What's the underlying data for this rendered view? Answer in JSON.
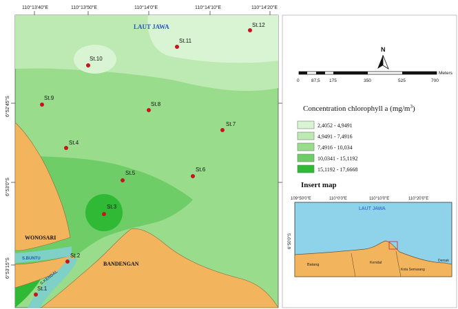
{
  "main_map": {
    "top_coords": [
      "110°13'40\"E",
      "110°13'50\"E",
      "110°14'0\"E",
      "110°14'10\"E",
      "110°14'20\"E"
    ],
    "left_coords": [
      "6°52'45\"S",
      "6°53'0\"S",
      "6°53'15\"S"
    ],
    "sea_label": "LAUT JAWA",
    "places": {
      "wonosari": "WONOSARI",
      "bandengan": "BANDENGAN",
      "river_buntu": "S.BUNTU",
      "river_kendal": "S.KENDAL"
    },
    "stations": [
      {
        "id": "st1",
        "label": "St.1"
      },
      {
        "id": "st2",
        "label": "St.2"
      },
      {
        "id": "st3",
        "label": "St.3"
      },
      {
        "id": "st4",
        "label": "St.4"
      },
      {
        "id": "st5",
        "label": "St.5"
      },
      {
        "id": "st6",
        "label": "St.6"
      },
      {
        "id": "st7",
        "label": "St.7"
      },
      {
        "id": "st8",
        "label": "St.8"
      },
      {
        "id": "st9",
        "label": "St.9"
      },
      {
        "id": "st10",
        "label": "St.10"
      },
      {
        "id": "st11",
        "label": "St.11"
      },
      {
        "id": "st12",
        "label": "St.12"
      }
    ]
  },
  "north_arrow": "N",
  "scale_bar": {
    "ticks": [
      "0",
      "87,5",
      "175",
      "350",
      "525",
      "700"
    ],
    "unit": "Meters"
  },
  "legend": {
    "title": "Concentration chlorophyll a (mg/m",
    "title_sup": "3",
    "title_end": ")",
    "classes": [
      {
        "label": "2,4052 - 4,9491",
        "color": "#d9f4d2"
      },
      {
        "label": "4,9491 - 7,4916",
        "color": "#bde9b3"
      },
      {
        "label": "7,4916 - 10,034",
        "color": "#98dc8c"
      },
      {
        "label": "10,0341 - 15,1192",
        "color": "#6fcd67"
      },
      {
        "label": "15,1192 - 17,6668",
        "color": "#2fb935"
      }
    ]
  },
  "insert_map": {
    "title": "Insert map",
    "top_coords": [
      "109°50'0\"E",
      "110°0'0\"E",
      "110°10'0\"E",
      "110°20'0\"E"
    ],
    "left_coord": "6°50'0\"S",
    "sea_label": "LAUT JAWA",
    "places": {
      "batang": "Batang",
      "kendal": "Kendal",
      "kota_semarang": "Kota Semarang",
      "demak": "Demak"
    }
  }
}
